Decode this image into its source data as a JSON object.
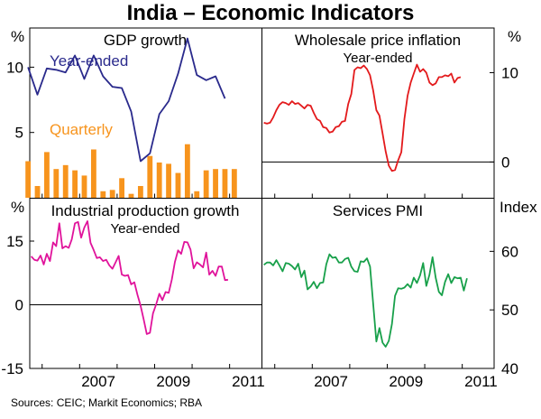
{
  "title": "India – Economic Indicators",
  "source": "Sources: CEIC; Markit Economics; RBA",
  "colors": {
    "gdp_ye": "#2a2a8c",
    "gdp_q": "#f7941d",
    "wpi": "#e31a1c",
    "ip": "#e0139b",
    "pmi": "#18a04a"
  },
  "x_ticks": [
    "2007",
    "2009",
    "2011"
  ],
  "chart_data": [
    {
      "id": "gdp",
      "type": "bar",
      "title": "GDP growth",
      "unit": "%",
      "ylim": [
        0,
        13
      ],
      "yticks": [
        "10",
        "5"
      ],
      "grid": false,
      "series": [
        {
          "name": "Year-ended",
          "type": "line",
          "x": [
            "2005-Q3",
            "2005-Q4",
            "2006-Q1",
            "2006-Q2",
            "2006-Q3",
            "2006-Q4",
            "2007-Q1",
            "2007-Q2",
            "2007-Q3",
            "2007-Q4",
            "2008-Q1",
            "2008-Q2",
            "2008-Q3",
            "2008-Q4",
            "2009-Q1",
            "2009-Q2",
            "2009-Q3",
            "2009-Q4",
            "2010-Q1",
            "2010-Q2",
            "2010-Q3",
            "2010-Q4",
            "2011-Q1"
          ],
          "values": [
            10.0,
            7.9,
            9.9,
            9.8,
            9.6,
            10.9,
            9.1,
            10.9,
            9.3,
            8.5,
            8.4,
            6.6,
            2.8,
            3.4,
            6.4,
            7.4,
            9.5,
            12.2,
            9.4,
            9.0,
            9.3,
            7.6,
            null
          ]
        },
        {
          "name": "Quarterly",
          "type": "bar",
          "x": [
            "2005-Q3",
            "2005-Q4",
            "2006-Q1",
            "2006-Q2",
            "2006-Q3",
            "2006-Q4",
            "2007-Q1",
            "2007-Q2",
            "2007-Q3",
            "2007-Q4",
            "2008-Q1",
            "2008-Q2",
            "2008-Q3",
            "2008-Q4",
            "2009-Q1",
            "2009-Q2",
            "2009-Q3",
            "2009-Q4",
            "2010-Q1",
            "2010-Q2",
            "2010-Q3",
            "2010-Q4",
            "2011-Q1"
          ],
          "values": [
            2.8,
            0.9,
            3.5,
            2.2,
            2.5,
            2.1,
            1.7,
            3.7,
            0.5,
            0.6,
            1.5,
            0.3,
            0.9,
            3.2,
            2.7,
            2.6,
            1.9,
            4.1,
            0.5,
            2.1,
            2.2,
            2.2,
            2.2
          ]
        }
      ]
    },
    {
      "id": "wpi",
      "type": "line",
      "title": "Wholesale price inflation",
      "subtitle": "Year-ended",
      "unit": "%",
      "ylim": [
        -4,
        15
      ],
      "yticks": [
        "10",
        "0"
      ],
      "series": [
        {
          "name": "Year-ended",
          "x_start": "2005-09",
          "values": [
            4.4,
            4.3,
            4.4,
            5.0,
            5.8,
            6.4,
            6.7,
            6.6,
            6.4,
            6.8,
            6.5,
            6.6,
            6.3,
            6.0,
            6.4,
            6.3,
            5.5,
            4.8,
            4.6,
            3.9,
            3.8,
            3.3,
            3.4,
            3.9,
            4.0,
            4.5,
            4.6,
            6.5,
            7.6,
            10.3,
            10.6,
            10.5,
            10.8,
            10.4,
            9.7,
            8.0,
            5.8,
            5.2,
            3.2,
            1.2,
            -0.4,
            -1.0,
            -0.9,
            0.2,
            1.1,
            4.8,
            7.4,
            8.9,
            9.9,
            10.9,
            10.1,
            10.4,
            10.0,
            8.9,
            8.6,
            8.8,
            9.5,
            9.5,
            9.7,
            9.6,
            9.9,
            8.9,
            9.4,
            9.5
          ]
        }
      ]
    },
    {
      "id": "ip",
      "type": "line",
      "title": "Industrial production growth",
      "subtitle": "Year-ended",
      "unit": "%",
      "ylim": [
        -15,
        25
      ],
      "yticks": [
        "15",
        "0",
        "-15"
      ],
      "series": [
        {
          "name": "Year-ended",
          "x_start": "2005-09",
          "values": [
            11.4,
            10.6,
            10.4,
            11.6,
            9.5,
            12.0,
            10.3,
            14.7,
            13.8,
            19.2,
            13.3,
            13.8,
            13.4,
            15.4,
            19.2,
            19.5,
            15.8,
            18.2,
            19.7,
            14.6,
            12.9,
            11.0,
            11.2,
            10.3,
            10.6,
            9.3,
            8.5,
            10.0,
            11.5,
            7.1,
            6.8,
            7.0,
            4.8,
            5.3,
            2.4,
            -0.2,
            -3.5,
            -6.9,
            -6.6,
            -2.0,
            0.1,
            2.6,
            1.1,
            3.0,
            2.8,
            5.9,
            10.1,
            12.8,
            12.0,
            14.8,
            14.7,
            13.0,
            8.6,
            10.0,
            9.5,
            8.8,
            12.3,
            7.1,
            8.0,
            6.8,
            9.0,
            9.0,
            5.8,
            5.9
          ]
        }
      ]
    },
    {
      "id": "pmi",
      "type": "line",
      "title": "Services PMI",
      "unit": "Index",
      "ylim": [
        40,
        69
      ],
      "yticks": [
        "60",
        "50",
        "40"
      ],
      "series": [
        {
          "name": "Services PMI",
          "x_start": "2005-09",
          "values": [
            57.7,
            58.1,
            58.1,
            57.6,
            58.5,
            57.6,
            56.6,
            58.0,
            57.9,
            57.5,
            56.9,
            57.9,
            55.6,
            56.7,
            53.5,
            54.0,
            54.8,
            53.7,
            54.6,
            54.7,
            57.8,
            59.5,
            58.9,
            59.0,
            58.1,
            58.1,
            58.7,
            58.9,
            57.4,
            56.6,
            56.5,
            58.3,
            58.2,
            58.8,
            57.4,
            51.0,
            44.6,
            46.9,
            44.4,
            43.7,
            44.7,
            47.6,
            52.4,
            53.7,
            53.6,
            53.8,
            54.4,
            53.8,
            55.5,
            54.6,
            55.9,
            58.0,
            54.1,
            56.0,
            59.0,
            55.5,
            53.1,
            52.5,
            54.8,
            56.1,
            54.6,
            55.6,
            55.4,
            55.5,
            53.3,
            55.4
          ]
        }
      ]
    }
  ]
}
